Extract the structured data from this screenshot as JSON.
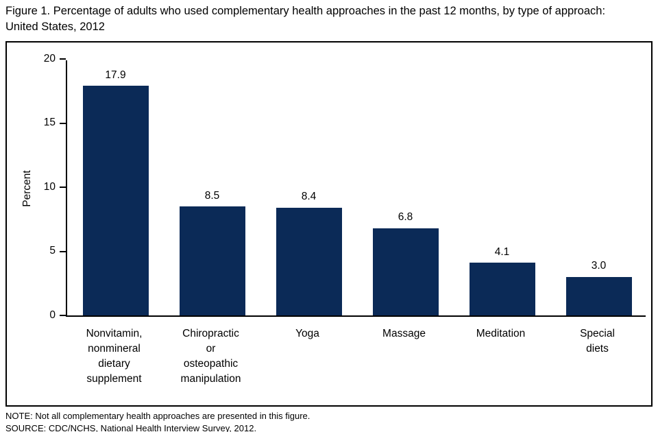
{
  "title": "Figure 1. Percentage of adults who used complementary health approaches in the past 12 months, by type of approach: United States, 2012",
  "notes": {
    "note": "NOTE: Not all complementary health approaches are presented in this figure.",
    "source": "SOURCE: CDC/NCHS, National Health Interview Survey, 2012."
  },
  "chart_data": {
    "type": "bar",
    "title": "Figure 1. Percentage of adults who used complementary health approaches in the past 12 months, by type of approach: United States, 2012",
    "categories": [
      "Nonvitamin,\nnonmineral\ndietary\nsupplement",
      "Chiropractic\nor\nosteopathic\nmanipulation",
      "Yoga",
      "Massage",
      "Meditation",
      "Special\ndiets"
    ],
    "values": [
      17.9,
      8.5,
      8.4,
      6.8,
      4.1,
      3.0
    ],
    "value_labels": [
      "17.9",
      "8.5",
      "8.4",
      "6.8",
      "4.1",
      "3.0"
    ],
    "xlabel": "",
    "ylabel": "Percent",
    "ylim": [
      0,
      20
    ],
    "yticks": [
      0,
      5,
      10,
      15,
      20
    ],
    "grid": false,
    "legend_position": "none",
    "bar_color": "#0b2a57",
    "frame_border_color": "#000000"
  }
}
